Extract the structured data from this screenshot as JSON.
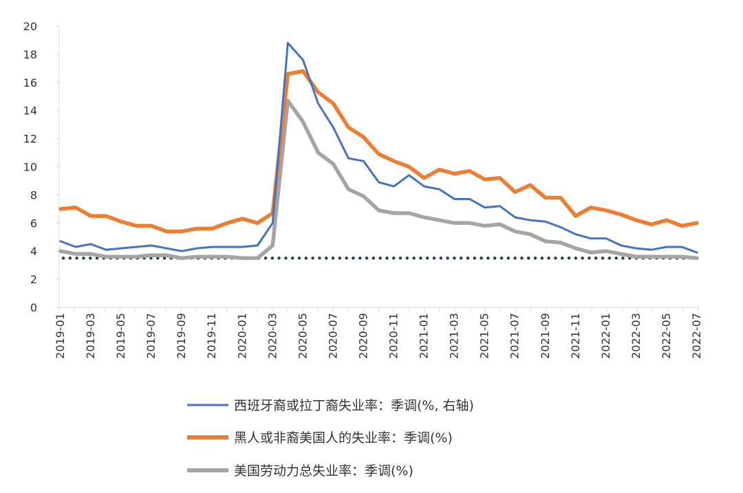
{
  "chart_data": {
    "type": "line",
    "title": "",
    "xlabel": "",
    "ylabel": "",
    "ylim": [
      0,
      20
    ],
    "yticks": [
      0,
      2,
      4,
      6,
      8,
      10,
      12,
      14,
      16,
      18,
      20
    ],
    "grid": false,
    "legend_position": "bottom",
    "x": [
      "2019-01",
      "2019-02",
      "2019-03",
      "2019-04",
      "2019-05",
      "2019-06",
      "2019-07",
      "2019-08",
      "2019-09",
      "2019-10",
      "2019-11",
      "2019-12",
      "2020-01",
      "2020-02",
      "2020-03",
      "2020-04",
      "2020-05",
      "2020-06",
      "2020-07",
      "2020-08",
      "2020-09",
      "2020-10",
      "2020-11",
      "2020-12",
      "2021-01",
      "2021-02",
      "2021-03",
      "2021-04",
      "2021-05",
      "2021-06",
      "2021-07",
      "2021-08",
      "2021-09",
      "2021-10",
      "2021-11",
      "2021-12",
      "2022-01",
      "2022-02",
      "2022-03",
      "2022-04",
      "2022-05",
      "2022-06",
      "2022-07"
    ],
    "xtick_labels": [
      "2019-01",
      "2019-03",
      "2019-05",
      "2019-07",
      "2019-09",
      "2019-11",
      "2020-01",
      "2020-03",
      "2020-05",
      "2020-07",
      "2020-09",
      "2020-11",
      "2021-01",
      "2021-03",
      "2021-05",
      "2021-07",
      "2021-09",
      "2021-11",
      "2022-01",
      "2022-03",
      "2022-05",
      "2022-07"
    ],
    "series": [
      {
        "name": "西班牙裔或拉丁裔失业率：季调(%, 右轴)",
        "color": "#4472C4",
        "line_style": "solid",
        "values": [
          4.7,
          4.3,
          4.5,
          4.1,
          4.2,
          4.3,
          4.4,
          4.2,
          4.0,
          4.2,
          4.3,
          4.3,
          4.3,
          4.4,
          6.0,
          18.8,
          17.6,
          14.5,
          12.8,
          10.6,
          10.4,
          8.9,
          8.6,
          9.4,
          8.6,
          8.4,
          7.7,
          7.7,
          7.1,
          7.2,
          6.4,
          6.2,
          6.1,
          5.7,
          5.2,
          4.9,
          4.9,
          4.4,
          4.2,
          4.1,
          4.3,
          4.3,
          3.9
        ]
      },
      {
        "name": "黑人或非裔美国人的失业率：季调(%)",
        "color": "#ED7D31",
        "line_style": "solid",
        "values": [
          7.0,
          7.1,
          6.5,
          6.5,
          6.1,
          5.8,
          5.8,
          5.4,
          5.4,
          5.6,
          5.6,
          6.0,
          6.3,
          6.0,
          6.7,
          16.6,
          16.8,
          15.3,
          14.5,
          12.8,
          12.1,
          10.9,
          10.4,
          10.0,
          9.2,
          9.8,
          9.5,
          9.7,
          9.1,
          9.2,
          8.2,
          8.7,
          7.8,
          7.8,
          6.5,
          7.1,
          6.9,
          6.6,
          6.2,
          5.9,
          6.2,
          5.8,
          6.0
        ]
      },
      {
        "name": "美国劳动力总失业率：季调(%)",
        "color": "#A5A5A5",
        "line_style": "solid",
        "values": [
          4.0,
          3.8,
          3.8,
          3.6,
          3.6,
          3.6,
          3.7,
          3.7,
          3.5,
          3.6,
          3.6,
          3.6,
          3.5,
          3.5,
          4.4,
          14.7,
          13.2,
          11.0,
          10.2,
          8.4,
          7.9,
          6.9,
          6.7,
          6.7,
          6.4,
          6.2,
          6.0,
          6.0,
          5.8,
          5.9,
          5.4,
          5.2,
          4.7,
          4.6,
          4.2,
          3.9,
          4.0,
          3.8,
          3.6,
          3.6,
          3.6,
          3.6,
          3.5
        ]
      },
      {
        "name": "",
        "color": "#2E3B55",
        "line_style": "dotted",
        "constant": 3.5
      }
    ]
  }
}
